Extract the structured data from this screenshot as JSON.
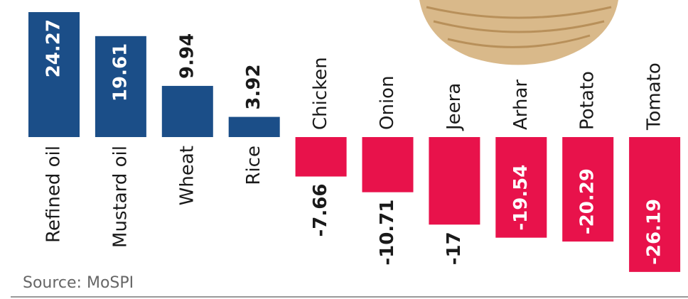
{
  "chart_data": {
    "type": "bar",
    "categories": [
      "Refined oil",
      "Mustard oil",
      "Wheat",
      "Rice",
      "Chicken",
      "Onion",
      "Jeera",
      "Arhar",
      "Potato",
      "Tomato"
    ],
    "values": [
      24.27,
      19.61,
      9.94,
      3.92,
      -7.66,
      -10.71,
      -17,
      -19.54,
      -20.29,
      -26.19
    ],
    "color_positive": "#1b4e88",
    "color_negative": "#e8124b",
    "source": "Source: MoSPI"
  }
}
